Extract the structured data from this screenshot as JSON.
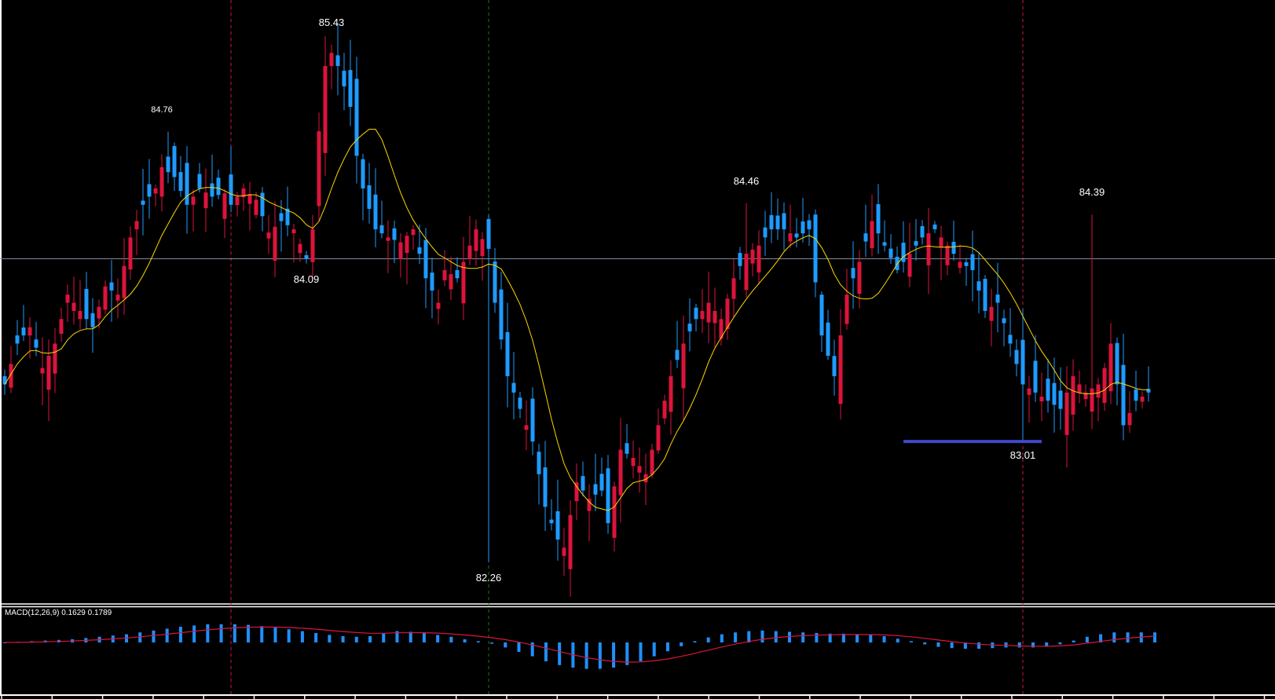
{
  "chart_data": [
    {
      "type": "candlestick",
      "title": "",
      "xlabel": "",
      "ylabel": "",
      "ylim": [
        82.2,
        85.5
      ],
      "grid": false,
      "up_color": "#dc143c",
      "down_color": "#1e9bff",
      "ma_color": "#ffd700",
      "annotations": [
        {
          "text": "84.76",
          "candle": 25,
          "position": "above"
        },
        {
          "text": "85.43",
          "candle": 52,
          "position": "above"
        },
        {
          "text": "84.09",
          "candle": 48,
          "position": "below"
        },
        {
          "text": "82.26",
          "candle": 77,
          "position": "below"
        },
        {
          "text": "84.46",
          "candle": 118,
          "position": "above"
        },
        {
          "text": "83.01",
          "candle": 162,
          "position": "below"
        },
        {
          "text": "84.39",
          "candle": 173,
          "position": "above"
        }
      ],
      "horizontal_line": {
        "price": 84.12,
        "color": "#8a95a5"
      },
      "support_line": {
        "price": 83.01,
        "from_candle": 143,
        "to_candle": 165,
        "color": "#3f48cc"
      },
      "vertical_markers": [
        {
          "candle": 36,
          "color": "#dc143c",
          "style": "dashed"
        },
        {
          "candle": 77,
          "color": "#1a7a1a",
          "style": "dashed"
        },
        {
          "candle": 162,
          "color": "#dc143c",
          "style": "dashed"
        }
      ],
      "waypoints_close": [
        [
          0,
          83.35
        ],
        [
          2,
          83.6
        ],
        [
          4,
          83.7
        ],
        [
          6,
          83.45
        ],
        [
          8,
          83.6
        ],
        [
          10,
          83.9
        ],
        [
          12,
          83.8
        ],
        [
          14,
          83.7
        ],
        [
          16,
          83.95
        ],
        [
          18,
          83.9
        ],
        [
          20,
          84.25
        ],
        [
          22,
          84.45
        ],
        [
          24,
          84.55
        ],
        [
          25,
          84.68
        ],
        [
          27,
          84.62
        ],
        [
          29,
          84.45
        ],
        [
          31,
          84.55
        ],
        [
          33,
          84.5
        ],
        [
          35,
          84.52
        ],
        [
          36,
          84.45
        ],
        [
          38,
          84.55
        ],
        [
          40,
          84.48
        ],
        [
          42,
          84.28
        ],
        [
          44,
          84.35
        ],
        [
          46,
          84.3
        ],
        [
          48,
          84.12
        ],
        [
          49,
          84.3
        ],
        [
          50,
          84.9
        ],
        [
          51,
          85.3
        ],
        [
          52,
          85.38
        ],
        [
          53,
          85.3
        ],
        [
          55,
          85.05
        ],
        [
          56,
          84.75
        ],
        [
          57,
          84.55
        ],
        [
          59,
          84.3
        ],
        [
          61,
          84.25
        ],
        [
          63,
          84.22
        ],
        [
          65,
          84.3
        ],
        [
          66,
          84.15
        ],
        [
          67,
          84.0
        ],
        [
          69,
          83.85
        ],
        [
          70,
          84.05
        ],
        [
          72,
          84.0
        ],
        [
          74,
          84.2
        ],
        [
          75,
          84.3
        ],
        [
          77,
          84.18
        ],
        [
          78,
          83.85
        ],
        [
          80,
          83.4
        ],
        [
          82,
          83.2
        ],
        [
          84,
          83.0
        ],
        [
          86,
          82.6
        ],
        [
          88,
          82.4
        ],
        [
          89,
          82.35
        ],
        [
          91,
          82.75
        ],
        [
          93,
          82.65
        ],
        [
          95,
          82.7
        ],
        [
          96,
          82.5
        ],
        [
          98,
          82.95
        ],
        [
          100,
          82.9
        ],
        [
          102,
          82.8
        ],
        [
          104,
          83.1
        ],
        [
          106,
          83.4
        ],
        [
          108,
          83.6
        ],
        [
          110,
          83.75
        ],
        [
          112,
          83.85
        ],
        [
          114,
          83.75
        ],
        [
          116,
          84.0
        ],
        [
          118,
          84.15
        ],
        [
          120,
          84.2
        ],
        [
          122,
          84.3
        ],
        [
          124,
          84.3
        ],
        [
          126,
          84.25
        ],
        [
          128,
          84.3
        ],
        [
          130,
          83.65
        ],
        [
          132,
          83.4
        ],
        [
          134,
          83.9
        ],
        [
          136,
          84.1
        ],
        [
          138,
          84.35
        ],
        [
          140,
          84.2
        ],
        [
          142,
          84.05
        ],
        [
          144,
          84.15
        ],
        [
          146,
          84.25
        ],
        [
          148,
          84.3
        ],
        [
          150,
          84.2
        ],
        [
          152,
          84.1
        ],
        [
          154,
          84.05
        ],
        [
          156,
          83.8
        ],
        [
          158,
          83.85
        ],
        [
          160,
          83.6
        ],
        [
          162,
          83.35
        ],
        [
          164,
          83.3
        ],
        [
          166,
          83.25
        ],
        [
          168,
          83.2
        ],
        [
          170,
          83.4
        ],
        [
          172,
          83.3
        ],
        [
          174,
          83.35
        ],
        [
          175,
          83.45
        ],
        [
          176,
          83.6
        ],
        [
          178,
          83.1
        ],
        [
          180,
          83.25
        ],
        [
          182,
          83.3
        ]
      ]
    },
    {
      "type": "bar",
      "title": "MACD(12,26,9) 0.1629 0.1789",
      "series": [
        {
          "name": "MACD histogram",
          "color": "#1e90ff"
        },
        {
          "name": "Signal",
          "color": "#dc143c"
        }
      ],
      "values_macd": [
        0.0,
        0.01,
        0.02,
        0.03,
        0.04,
        0.05,
        0.07,
        0.09,
        0.11,
        0.13,
        0.16,
        0.19,
        0.22,
        0.25,
        0.27,
        0.29,
        0.29,
        0.29,
        0.28,
        0.26,
        0.24,
        0.21,
        0.18,
        0.15,
        0.12,
        0.1,
        0.09,
        0.1,
        0.15,
        0.18,
        0.17,
        0.15,
        0.12,
        0.09,
        0.05,
        0.02,
        -0.02,
        -0.08,
        -0.15,
        -0.22,
        -0.3,
        -0.36,
        -0.4,
        -0.42,
        -0.42,
        -0.4,
        -0.36,
        -0.3,
        -0.22,
        -0.14,
        -0.06,
        0.02,
        0.08,
        0.13,
        0.16,
        0.18,
        0.19,
        0.18,
        0.17,
        0.16,
        0.15,
        0.14,
        0.14,
        0.13,
        0.12,
        0.1,
        0.06,
        0.02,
        -0.03,
        -0.07,
        -0.09,
        -0.1,
        -0.1,
        -0.09,
        -0.08,
        -0.08,
        -0.08,
        -0.07,
        -0.03,
        0.03,
        0.09,
        0.13,
        0.16,
        0.16,
        0.16,
        0.16
      ],
      "ylim": [
        -0.5,
        0.4
      ]
    }
  ],
  "labels": {
    "macd_title": "MACD(12,26,9) 0.1629 0.1789"
  }
}
